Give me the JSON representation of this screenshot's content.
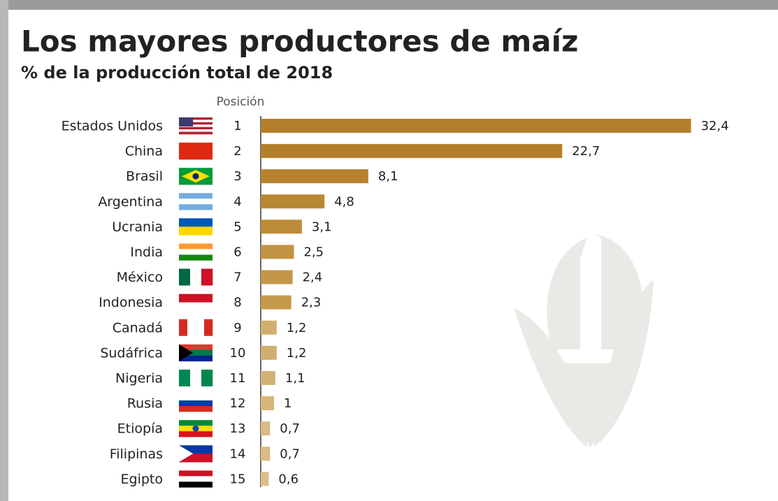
{
  "chart_data": {
    "type": "bar",
    "orientation": "horizontal",
    "title": "Los mayores productores de maíz",
    "subtitle": "% de la producción total de 2018",
    "position_label": "Posición",
    "categories": [
      "Estados Unidos",
      "China",
      "Brasil",
      "Argentina",
      "Ucrania",
      "India",
      "México",
      "Indonesia",
      "Canadá",
      "Sudáfrica",
      "Nigeria",
      "Rusia",
      "Etiopía",
      "Filipinas",
      "Egipto"
    ],
    "positions": [
      1,
      2,
      3,
      4,
      5,
      6,
      7,
      8,
      9,
      10,
      11,
      12,
      13,
      14,
      15
    ],
    "values": [
      32.4,
      22.7,
      8.1,
      4.8,
      3.1,
      2.5,
      2.4,
      2.3,
      1.2,
      1.2,
      1.1,
      1,
      0.7,
      0.7,
      0.6
    ],
    "value_labels": [
      "32,4",
      "22,7",
      "8,1",
      "4,8",
      "3,1",
      "2,5",
      "2,4",
      "2,3",
      "1,2",
      "1,2",
      "1,1",
      "1",
      "0,7",
      "0,7",
      "0,6"
    ],
    "colors": [
      "#b47f2a",
      "#b47f2a",
      "#b68330",
      "#b98836",
      "#bc8c3b",
      "#c19343",
      "#c39747",
      "#c59a4b",
      "#d1ae70",
      "#d1ae70",
      "#d3b275",
      "#d6b67b",
      "#d9bb83",
      "#d9bb83",
      "#dbbf89"
    ]
  }
}
